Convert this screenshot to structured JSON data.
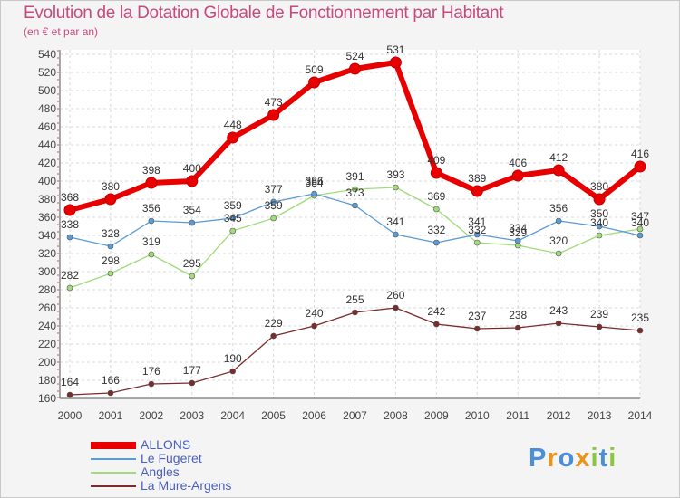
{
  "chart_data": {
    "type": "line",
    "title": "Evolution de la Dotation Globale de Fonctionnement par Habitant",
    "subtitle": "(en € et par an)",
    "x": [
      "2000",
      "2001",
      "2002",
      "2003",
      "2004",
      "2005",
      "2006",
      "2007",
      "2008",
      "2009",
      "2010",
      "2011",
      "2012",
      "2013",
      "2014"
    ],
    "ylim": [
      160,
      540
    ],
    "ytick_step": 20,
    "grid": true,
    "legend_position": "bottom-left",
    "series": [
      {
        "name": "ALLONS",
        "color": "#e80000",
        "values": [
          368,
          380,
          398,
          400,
          448,
          473,
          509,
          524,
          531,
          409,
          389,
          406,
          412,
          380,
          416
        ]
      },
      {
        "name": "Le Fugeret",
        "color": "#5b9bd5",
        "values": [
          338,
          328,
          356,
          354,
          359,
          377,
          386,
          373,
          341,
          332,
          341,
          334,
          356,
          350,
          340
        ]
      },
      {
        "name": "Angles",
        "color": "#a0dc7a",
        "values": [
          282,
          298,
          319,
          295,
          345,
          359,
          384,
          391,
          393,
          369,
          332,
          329,
          320,
          340,
          347
        ]
      },
      {
        "name": "La Mure-Argens",
        "color": "#7a2b2b",
        "values": [
          164,
          166,
          176,
          177,
          190,
          229,
          240,
          255,
          260,
          242,
          237,
          238,
          243,
          239,
          235
        ]
      }
    ]
  },
  "logo": {
    "text": "Proxiti",
    "letters": [
      "P",
      "r",
      "o",
      "x",
      "i",
      "t",
      "i"
    ],
    "colors": [
      "#4a8fd8",
      "#e8941a",
      "#4a8fd8",
      "#e8941a",
      "#8cc63e",
      "#4a8fd8",
      "#8cc63e"
    ]
  }
}
